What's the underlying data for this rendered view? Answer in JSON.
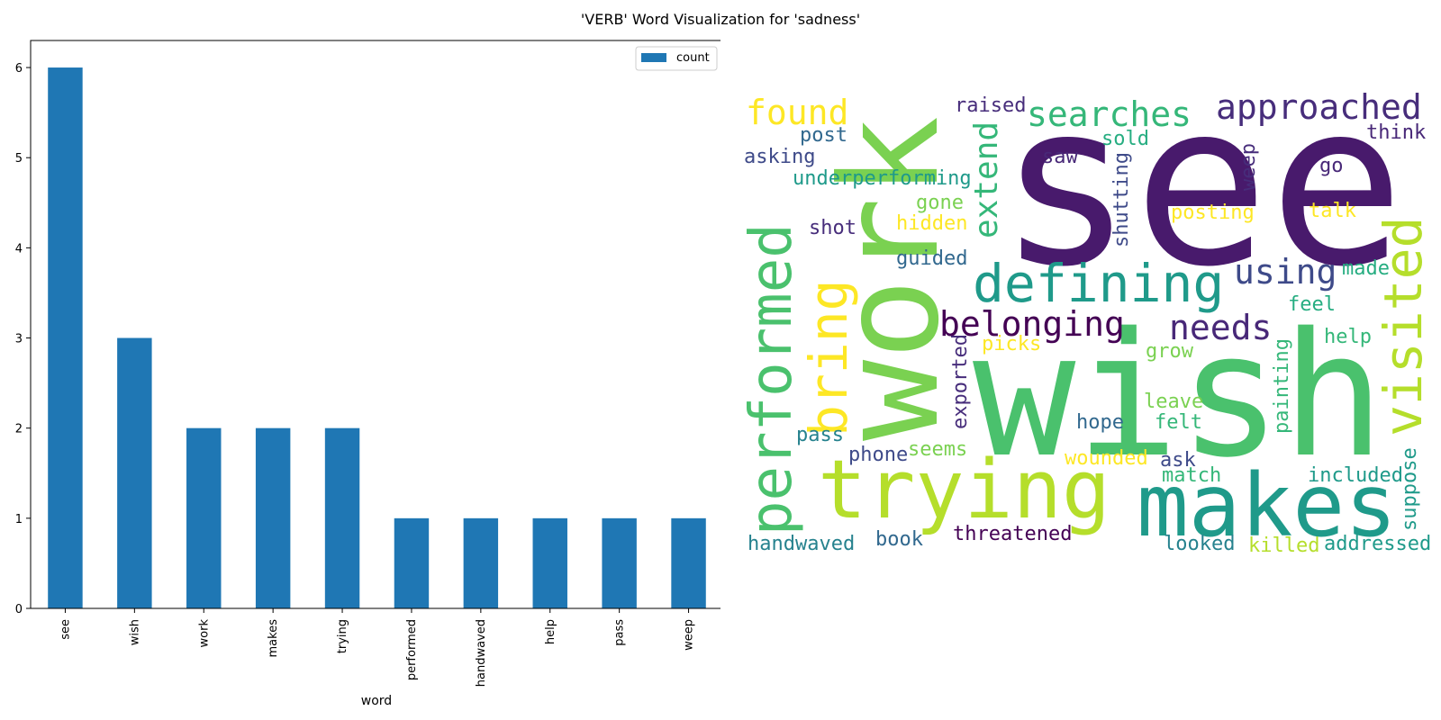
{
  "figure_title": "'VERB' Word Visualization for 'sadness'",
  "chart_data": {
    "type": "bar",
    "categories": [
      "see",
      "wish",
      "work",
      "makes",
      "trying",
      "performed",
      "handwaved",
      "help",
      "pass",
      "weep"
    ],
    "series": [
      {
        "name": "count",
        "values": [
          6,
          3,
          2,
          2,
          2,
          1,
          1,
          1,
          1,
          1
        ],
        "color": "#1f77b4"
      }
    ],
    "xlabel": "word",
    "ylabel": "",
    "ylim": [
      0,
      6.3
    ],
    "yticks": [
      0,
      1,
      2,
      3,
      4,
      5,
      6
    ],
    "legend_position": "top-right",
    "grid": false
  },
  "word_cloud": {
    "words": [
      "see",
      "wish",
      "work",
      "makes",
      "trying",
      "defining",
      "performed",
      "bring",
      "visited",
      "approached",
      "belonging",
      "searches",
      "found",
      "needs",
      "using",
      "extend",
      "raised",
      "think",
      "post",
      "sold",
      "asking",
      "saw",
      "weep",
      "go",
      "underperforming",
      "shutting",
      "gone",
      "hidden",
      "posting",
      "talk",
      "shot",
      "guided",
      "made",
      "feel",
      "exported",
      "picks",
      "grow",
      "help",
      "painting",
      "leave",
      "pass",
      "hope",
      "felt",
      "phone",
      "seems",
      "wounded",
      "ask",
      "suppose",
      "included",
      "match",
      "handwaved",
      "book",
      "threatened",
      "looked",
      "killed",
      "addressed"
    ]
  }
}
